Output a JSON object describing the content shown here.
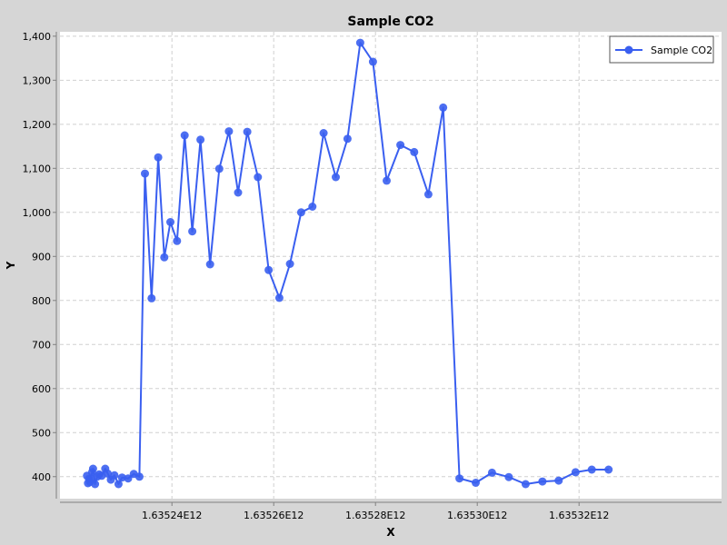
{
  "chart_data": {
    "type": "line",
    "title": "Sample CO2",
    "xlabel": "X",
    "ylabel": "Y",
    "xlim": [
      1635218000000,
      1635348000000
    ],
    "ylim": [
      350,
      1410
    ],
    "x_ticks": [
      {
        "value": 1635240000000,
        "label": "1.63524E12"
      },
      {
        "value": 1635260000000,
        "label": "1.63526E12"
      },
      {
        "value": 1635280000000,
        "label": "1.63528E12"
      },
      {
        "value": 1635300000000,
        "label": "1.63530E12"
      },
      {
        "value": 1635320000000,
        "label": "1.63532E12"
      }
    ],
    "y_ticks": [
      {
        "value": 400,
        "label": "400"
      },
      {
        "value": 500,
        "label": "500"
      },
      {
        "value": 600,
        "label": "600"
      },
      {
        "value": 700,
        "label": "700"
      },
      {
        "value": 800,
        "label": "800"
      },
      {
        "value": 900,
        "label": "900"
      },
      {
        "value": 1000,
        "label": "1,000"
      },
      {
        "value": 1100,
        "label": "1,100"
      },
      {
        "value": 1200,
        "label": "1,200"
      },
      {
        "value": 1300,
        "label": "1,300"
      },
      {
        "value": 1400,
        "label": "1,400"
      }
    ],
    "grid": true,
    "legend_position": "top-right",
    "series": [
      {
        "name": "Sample CO2",
        "color": "#3a5ff0",
        "points": [
          [
            1635223300000,
            402
          ],
          [
            1635223500000,
            385
          ],
          [
            1635223700000,
            395
          ],
          [
            1635223900000,
            388
          ],
          [
            1635224100000,
            395
          ],
          [
            1635224300000,
            410
          ],
          [
            1635224500000,
            418
          ],
          [
            1635224900000,
            383
          ],
          [
            1635225300000,
            400
          ],
          [
            1635225700000,
            405
          ],
          [
            1635226200000,
            402
          ],
          [
            1635226900000,
            418
          ],
          [
            1635227400000,
            407
          ],
          [
            1635228000000,
            393
          ],
          [
            1635228700000,
            403
          ],
          [
            1635229500000,
            383
          ],
          [
            1635230200000,
            398
          ],
          [
            1635231400000,
            396
          ],
          [
            1635232500000,
            406
          ],
          [
            1635233600000,
            400
          ],
          [
            1635234700000,
            1088
          ],
          [
            1635236000000,
            805
          ],
          [
            1635237300000,
            1125
          ],
          [
            1635238500000,
            898
          ],
          [
            1635239700000,
            978
          ],
          [
            1635241000000,
            935
          ],
          [
            1635242500000,
            1175
          ],
          [
            1635244000000,
            957
          ],
          [
            1635245600000,
            1165
          ],
          [
            1635247500000,
            882
          ],
          [
            1635249300000,
            1099
          ],
          [
            1635251200000,
            1184
          ],
          [
            1635253000000,
            1045
          ],
          [
            1635254800000,
            1183
          ],
          [
            1635256900000,
            1080
          ],
          [
            1635259000000,
            869
          ],
          [
            1635261100000,
            806
          ],
          [
            1635263200000,
            883
          ],
          [
            1635265400000,
            1000
          ],
          [
            1635267600000,
            1013
          ],
          [
            1635269800000,
            1180
          ],
          [
            1635272200000,
            1080
          ],
          [
            1635274500000,
            1167
          ],
          [
            1635277000000,
            1385
          ],
          [
            1635279500000,
            1342
          ],
          [
            1635282200000,
            1072
          ],
          [
            1635284900000,
            1153
          ],
          [
            1635287600000,
            1137
          ],
          [
            1635290400000,
            1041
          ],
          [
            1635293300000,
            1238
          ],
          [
            1635296500000,
            396
          ],
          [
            1635299700000,
            386
          ],
          [
            1635302900000,
            409
          ],
          [
            1635306200000,
            399
          ],
          [
            1635309500000,
            383
          ],
          [
            1635312800000,
            389
          ],
          [
            1635316000000,
            391
          ],
          [
            1635319300000,
            410
          ],
          [
            1635322500000,
            416
          ],
          [
            1635325800000,
            416
          ]
        ]
      }
    ]
  }
}
